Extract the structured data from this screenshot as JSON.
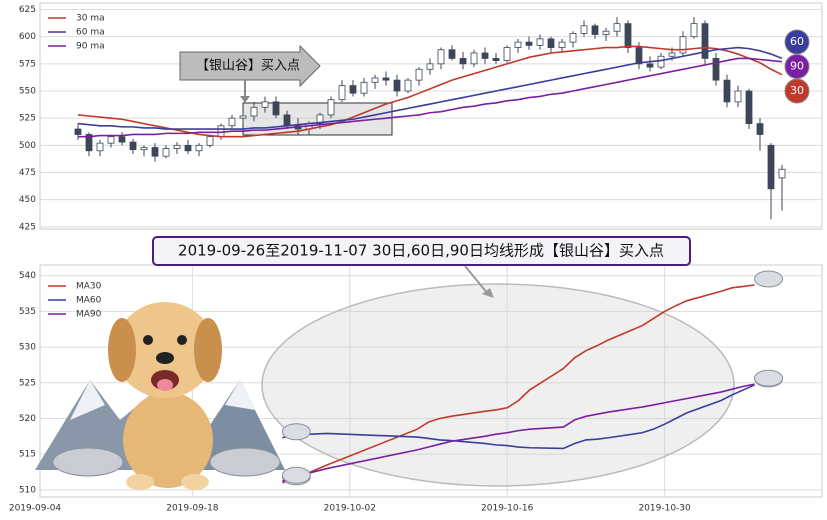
{
  "chart_data": [
    {
      "type": "candlestick",
      "ylim": [
        423,
        631
      ],
      "yticks": [
        425,
        450,
        475,
        500,
        525,
        550,
        575,
        600,
        625
      ],
      "candles": [
        [
          515,
          520,
          505,
          510
        ],
        [
          510,
          512,
          490,
          495
        ],
        [
          495,
          505,
          490,
          502
        ],
        [
          502,
          510,
          498,
          508
        ],
        [
          508,
          512,
          500,
          503
        ],
        [
          503,
          506,
          492,
          496
        ],
        [
          496,
          500,
          490,
          498
        ],
        [
          498,
          502,
          485,
          490
        ],
        [
          490,
          500,
          488,
          497
        ],
        [
          497,
          503,
          492,
          500
        ],
        [
          500,
          505,
          492,
          495
        ],
        [
          495,
          502,
          490,
          500
        ],
        [
          500,
          510,
          498,
          508
        ],
        [
          508,
          520,
          505,
          518
        ],
        [
          518,
          528,
          515,
          525
        ],
        [
          525,
          530,
          520,
          527
        ],
        [
          527,
          540,
          522,
          535
        ],
        [
          535,
          545,
          530,
          540
        ],
        [
          540,
          545,
          525,
          528
        ],
        [
          528,
          532,
          515,
          518
        ],
        [
          518,
          525,
          510,
          515
        ],
        [
          515,
          522,
          510,
          520
        ],
        [
          520,
          530,
          515,
          528
        ],
        [
          528,
          545,
          525,
          542
        ],
        [
          542,
          560,
          540,
          555
        ],
        [
          555,
          560,
          545,
          548
        ],
        [
          548,
          562,
          545,
          558
        ],
        [
          558,
          565,
          552,
          562
        ],
        [
          562,
          568,
          555,
          560
        ],
        [
          560,
          565,
          545,
          550
        ],
        [
          550,
          562,
          548,
          560
        ],
        [
          560,
          572,
          555,
          570
        ],
        [
          570,
          580,
          565,
          575
        ],
        [
          575,
          590,
          570,
          588
        ],
        [
          588,
          592,
          578,
          580
        ],
        [
          580,
          586,
          570,
          575
        ],
        [
          575,
          588,
          572,
          585
        ],
        [
          585,
          590,
          575,
          580
        ],
        [
          580,
          585,
          575,
          578
        ],
        [
          578,
          592,
          576,
          590
        ],
        [
          590,
          598,
          585,
          595
        ],
        [
          595,
          600,
          588,
          592
        ],
        [
          592,
          602,
          588,
          598
        ],
        [
          598,
          600,
          585,
          590
        ],
        [
          590,
          598,
          586,
          595
        ],
        [
          595,
          605,
          590,
          603
        ],
        [
          603,
          615,
          600,
          610
        ],
        [
          610,
          612,
          598,
          602
        ],
        [
          602,
          608,
          596,
          605
        ],
        [
          605,
          618,
          600,
          612
        ],
        [
          612,
          615,
          585,
          590
        ],
        [
          590,
          595,
          570,
          575
        ],
        [
          575,
          582,
          568,
          572
        ],
        [
          572,
          585,
          570,
          582
        ],
        [
          582,
          590,
          578,
          585
        ],
        [
          585,
          605,
          582,
          600
        ],
        [
          600,
          618,
          598,
          612
        ],
        [
          612,
          615,
          575,
          580
        ],
        [
          580,
          585,
          555,
          560
        ],
        [
          560,
          565,
          535,
          540
        ],
        [
          540,
          555,
          535,
          550
        ],
        [
          550,
          552,
          515,
          520
        ],
        [
          520,
          525,
          495,
          510
        ],
        [
          500,
          502,
          432,
          460
        ],
        [
          470,
          482,
          440,
          478
        ]
      ],
      "series": [
        {
          "name": "30 ma",
          "color": "#c0392b",
          "values": [
            528,
            527,
            526,
            525,
            524,
            522,
            520,
            518,
            516,
            514,
            512,
            510,
            509,
            508,
            508,
            508,
            509,
            510,
            511,
            512,
            513,
            515,
            517,
            519,
            522,
            526,
            530,
            534,
            538,
            541,
            544,
            548,
            552,
            556,
            560,
            563,
            566,
            569,
            572,
            575,
            578,
            581,
            583,
            585,
            586,
            587,
            588,
            589,
            590,
            590,
            591,
            591,
            590,
            589,
            588,
            588,
            589,
            590,
            589,
            587,
            584,
            580,
            576,
            570,
            565
          ]
        },
        {
          "name": "60 ma",
          "color": "#3b3d9c",
          "values": [
            520,
            519,
            518,
            518,
            517,
            517,
            516,
            516,
            515,
            515,
            515,
            515,
            515,
            515,
            515,
            515,
            516,
            516,
            517,
            518,
            519,
            520,
            521,
            522,
            523,
            524,
            526,
            528,
            530,
            532,
            534,
            536,
            538,
            540,
            542,
            544,
            546,
            548,
            550,
            552,
            554,
            556,
            558,
            560,
            562,
            564,
            566,
            568,
            570,
            572,
            574,
            576,
            577,
            578,
            580,
            582,
            584,
            586,
            588,
            589,
            590,
            589,
            587,
            584,
            580
          ]
        },
        {
          "name": "90 ma",
          "color": "#7b1fa2",
          "values": [
            508,
            508,
            509,
            509,
            509,
            510,
            510,
            510,
            511,
            511,
            511,
            512,
            512,
            512,
            513,
            513,
            514,
            514,
            515,
            516,
            517,
            518,
            519,
            520,
            521,
            522,
            523,
            524,
            525,
            526,
            527,
            528,
            530,
            531,
            533,
            535,
            536,
            538,
            539,
            541,
            542,
            544,
            545,
            547,
            548,
            550,
            552,
            554,
            556,
            558,
            560,
            562,
            564,
            566,
            568,
            570,
            572,
            574,
            576,
            578,
            580,
            580,
            579,
            578,
            577
          ]
        }
      ],
      "end_labels": [
        {
          "text": "60",
          "color": "#3b3d9c"
        },
        {
          "text": "90",
          "color": "#7b1fa2"
        },
        {
          "text": "30",
          "color": "#c0392b"
        }
      ],
      "annotation": "【银山谷】买入点"
    },
    {
      "type": "line",
      "title": "2019-09-26至2019-11-07 30日,60日,90日均线形成【银山谷】买入点",
      "xlim": [
        "2019-09-04",
        "2019-11-13"
      ],
      "xticks": [
        "2019-09-04",
        "2019-09-18",
        "2019-10-02",
        "2019-10-16",
        "2019-10-30"
      ],
      "ylim": [
        509,
        541.5
      ],
      "yticks": [
        510,
        515,
        520,
        525,
        530,
        535,
        540
      ],
      "x": [
        "2019-09-26",
        "2019-09-27",
        "2019-09-30",
        "2019-10-08",
        "2019-10-09",
        "2019-10-10",
        "2019-10-11",
        "2019-10-14",
        "2019-10-15",
        "2019-10-16",
        "2019-10-17",
        "2019-10-18",
        "2019-10-21",
        "2019-10-22",
        "2019-10-23",
        "2019-10-24",
        "2019-10-25",
        "2019-10-28",
        "2019-10-29",
        "2019-10-30",
        "2019-10-31",
        "2019-11-01",
        "2019-11-04",
        "2019-11-05",
        "2019-11-06",
        "2019-11-07"
      ],
      "series": [
        {
          "name": "MA30",
          "color": "#c0392b",
          "values": [
            511,
            511.5,
            513.5,
            518.5,
            519.5,
            520,
            520.3,
            521,
            521.2,
            521.5,
            522.5,
            524,
            527,
            528.5,
            529.5,
            530.2,
            531,
            533,
            534,
            535,
            535.8,
            536.5,
            537.8,
            538.3,
            538.5,
            538.7
          ]
        },
        {
          "name": "MA60",
          "color": "#3b3d9c",
          "values": [
            517.3,
            517.7,
            517.9,
            517.4,
            517.2,
            517,
            516.9,
            516.5,
            516.3,
            516.2,
            516,
            515.9,
            515.8,
            516.5,
            517,
            517.1,
            517.3,
            518,
            518.5,
            519.2,
            520,
            520.8,
            522.5,
            523.3,
            524,
            524.7
          ]
        },
        {
          "name": "MA90",
          "color": "#7b1fa2",
          "values": [
            511.2,
            511.8,
            513,
            515.6,
            516,
            516.4,
            516.8,
            517.5,
            517.8,
            518,
            518.3,
            518.5,
            518.8,
            519.8,
            520.3,
            520.6,
            520.9,
            521.6,
            521.9,
            522.2,
            522.5,
            522.8,
            523.7,
            524.1,
            524.5,
            524.8
          ]
        }
      ]
    }
  ]
}
